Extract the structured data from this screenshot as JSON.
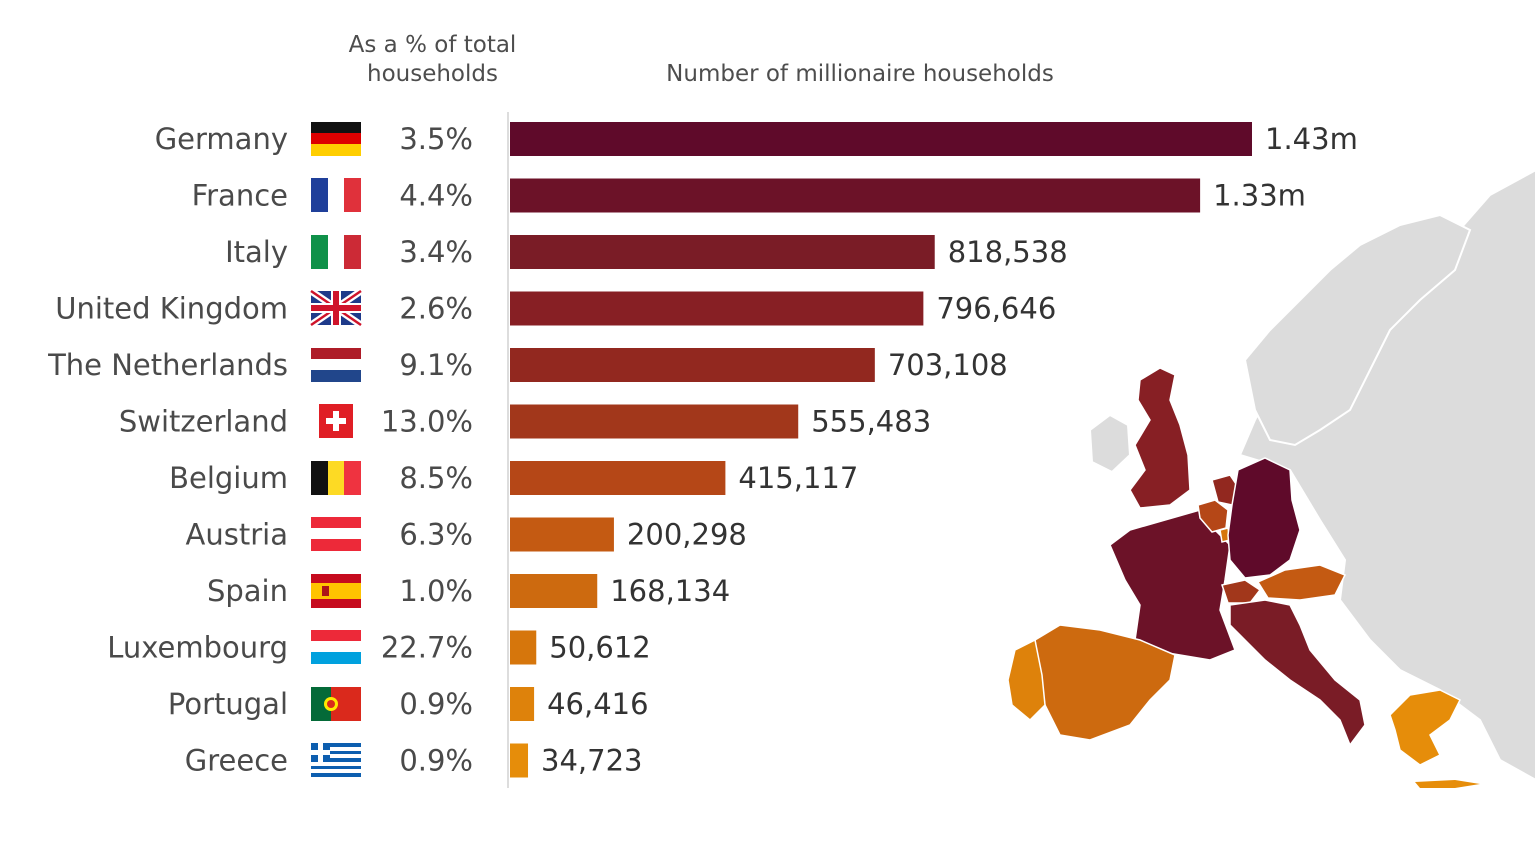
{
  "headers": {
    "pct_line1": "As a % of total",
    "pct_line2": "households",
    "count": "Number of millionaire households"
  },
  "chart_data": {
    "type": "bar",
    "orientation": "horizontal",
    "categories": [
      "Germany",
      "France",
      "Italy",
      "United Kingdom",
      "The Netherlands",
      "Switzerland",
      "Belgium",
      "Austria",
      "Spain",
      "Luxembourg",
      "Portugal",
      "Greece"
    ],
    "values": [
      1430000,
      1330000,
      818538,
      796646,
      703108,
      555483,
      415117,
      200298,
      168134,
      50612,
      46416,
      34723
    ],
    "value_labels": [
      "1.43m",
      "1.33m",
      "818,538",
      "796,646",
      "703,108",
      "555,483",
      "415,117",
      "200,298",
      "168,134",
      "50,612",
      "46,416",
      "34,723"
    ],
    "percent_of_households": [
      "3.5%",
      "4.4%",
      "3.4%",
      "2.6%",
      "9.1%",
      "13.0%",
      "8.5%",
      "6.3%",
      "1.0%",
      "22.7%",
      "0.9%",
      "0.9%"
    ],
    "bar_colors": [
      "#5f0a2a",
      "#6c1228",
      "#7a1c26",
      "#871f24",
      "#92281f",
      "#a2371b",
      "#b54717",
      "#c45a12",
      "#cd6a0f",
      "#d6760c",
      "#de820b",
      "#e68d0a"
    ],
    "xlim": [
      0,
      1430000
    ],
    "grid": false,
    "legend": "none",
    "flags": [
      "germany-flag",
      "france-flag",
      "italy-flag",
      "uk-flag",
      "netherlands-flag",
      "switzerland-flag",
      "belgium-flag",
      "austria-flag",
      "spain-flag",
      "luxembourg-flag",
      "portugal-flag",
      "greece-flag"
    ]
  },
  "map": {
    "name": "europe-map",
    "base_color": "#d9d9d9"
  }
}
